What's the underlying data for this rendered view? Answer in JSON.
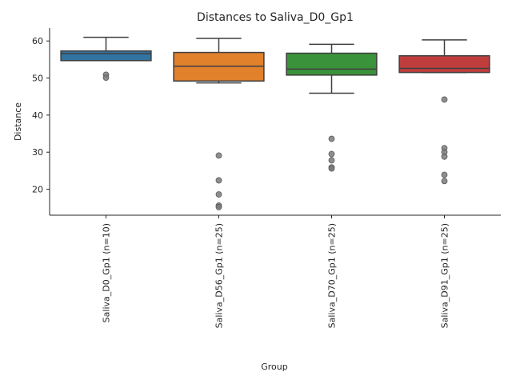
{
  "chart_data": {
    "type": "box",
    "title": "Distances to Saliva_D0_Gp1",
    "xlabel": "Group",
    "ylabel": "Distance",
    "ylim": [
      13,
      63.5
    ],
    "yticks": [
      20,
      30,
      40,
      50,
      60
    ],
    "grid": false,
    "groups": [
      {
        "label": "Saliva_D0_Gp1 (n=10)",
        "color": "#3274a1",
        "whisker_low": 54.7,
        "q1": 54.7,
        "median": 56.6,
        "q3": 57.3,
        "whisker_high": 61.0,
        "outliers": [
          50.9,
          50.1
        ]
      },
      {
        "label": "Saliva_D56_Gp1 (n=25)",
        "color": "#e1812c",
        "whisker_low": 48.7,
        "q1": 49.2,
        "median": 53.2,
        "q3": 56.9,
        "whisker_high": 60.7,
        "outliers": [
          29.1,
          22.4,
          18.6,
          15.6,
          15.2
        ]
      },
      {
        "label": "Saliva_D70_Gp1 (n=25)",
        "color": "#3a923a",
        "whisker_low": 45.9,
        "q1": 50.8,
        "median": 52.4,
        "q3": 56.7,
        "whisker_high": 59.1,
        "outliers": [
          33.6,
          29.5,
          27.8,
          25.9,
          25.6
        ]
      },
      {
        "label": "Saliva_D91_Gp1 (n=25)",
        "color": "#c03d3e",
        "whisker_low": 51.5,
        "q1": 51.5,
        "median": 52.6,
        "q3": 56.0,
        "whisker_high": 60.3,
        "outliers": [
          44.2,
          31.1,
          30.0,
          28.8,
          23.9,
          22.2
        ]
      }
    ]
  }
}
